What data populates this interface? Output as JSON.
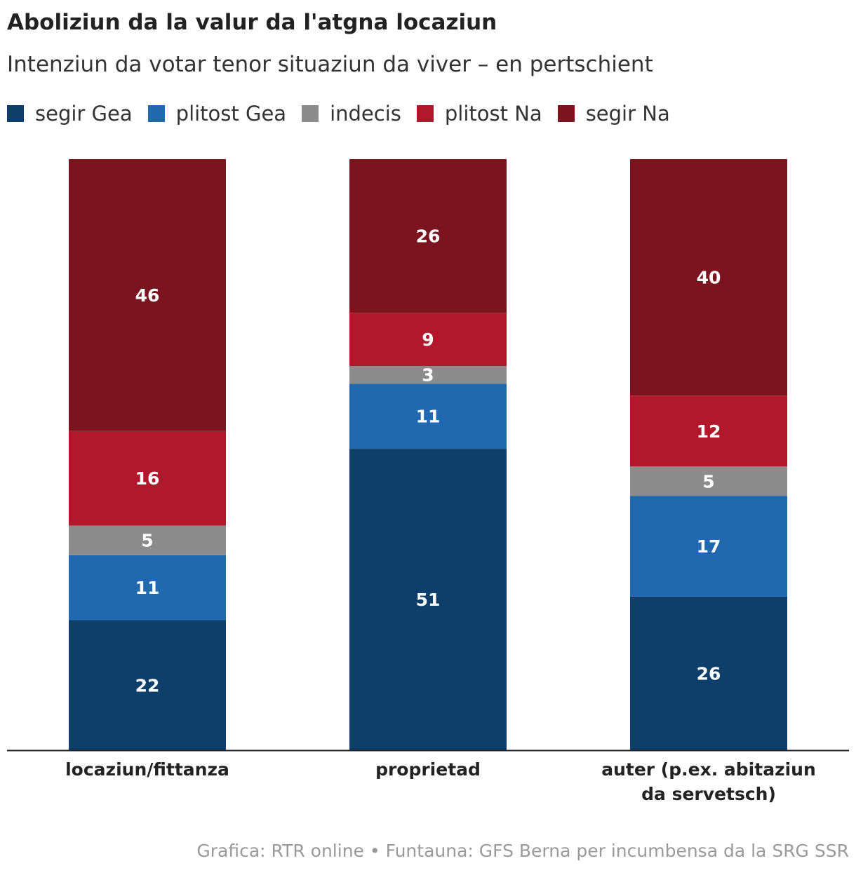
{
  "title": "Aboliziun da la valur da l'atgna locaziun",
  "subtitle": "Intenziun da votar tenor situaziun da viver – en pertschient",
  "footer": "Grafica: RTR online • Funtauna: GFS Berna per incumbensa da la SRG SSR",
  "legend": [
    {
      "label": "segir Gea",
      "color": "#0e3f6b"
    },
    {
      "label": "plitost Gea",
      "color": "#2068b0"
    },
    {
      "label": "indecis",
      "color": "#8c8c8c"
    },
    {
      "label": "plitost Na",
      "color": "#b2182b"
    },
    {
      "label": "segir Na",
      "color": "#7b141f"
    }
  ],
  "chart_data": {
    "type": "bar",
    "stacked": true,
    "title": "Aboliziun da la valur da l'atgna locaziun",
    "subtitle": "Intenziun da votar tenor situaziun da viver – en pertschient",
    "categories": [
      "locaziun/fittanza",
      "proprietad",
      "auter (p.ex. abitaziun da servetsch)"
    ],
    "series": [
      {
        "name": "segir Gea",
        "color": "#0e3f6b",
        "values": [
          22,
          51,
          26
        ]
      },
      {
        "name": "plitost Gea",
        "color": "#2068b0",
        "values": [
          11,
          11,
          17
        ]
      },
      {
        "name": "indecis",
        "color": "#8c8c8c",
        "values": [
          5,
          3,
          5
        ]
      },
      {
        "name": "plitost Na",
        "color": "#b2182b",
        "values": [
          16,
          9,
          12
        ]
      },
      {
        "name": "segir Na",
        "color": "#7b141f",
        "values": [
          46,
          26,
          40
        ]
      }
    ],
    "ylim": [
      0,
      100
    ],
    "xlabel": "",
    "ylabel": "",
    "grid": false,
    "legend_position": "top-left"
  }
}
